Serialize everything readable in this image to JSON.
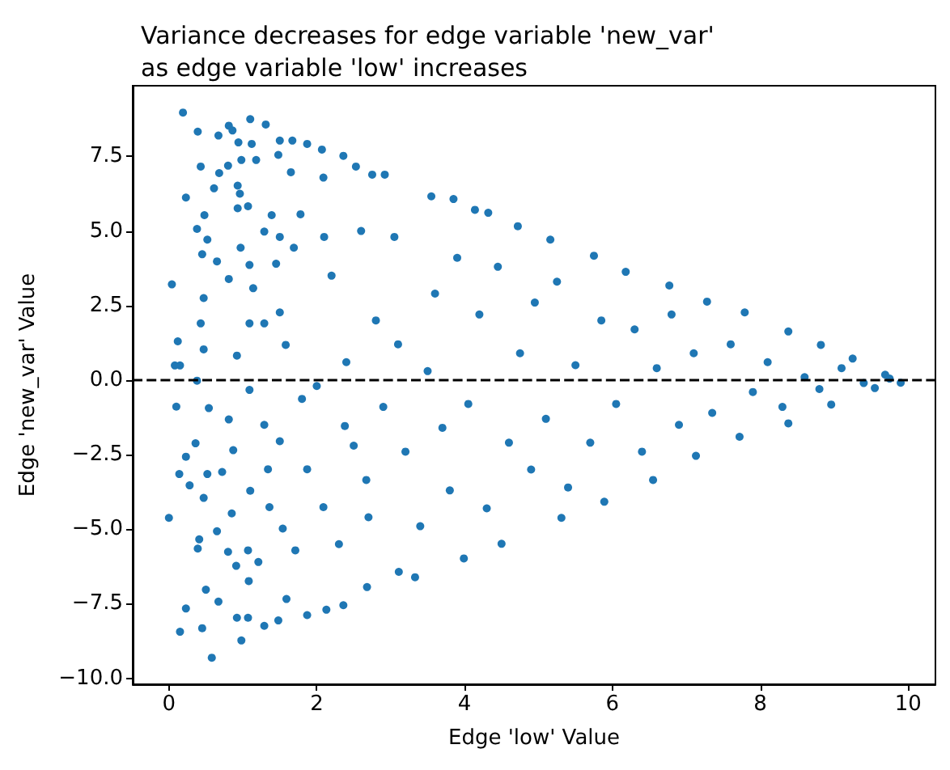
{
  "chart_data": {
    "type": "scatter",
    "title": "Variance decreases for edge variable 'new_var'\nas edge variable 'low' increases",
    "xlabel": "Edge 'low' Value",
    "ylabel": "Edge 'new_var' Value",
    "x": [
      0.19,
      0.23,
      0.04,
      0.12,
      0.08,
      0.15,
      0.39,
      0.43,
      0.48,
      0.38,
      0.52,
      0.45,
      0.65,
      0.43,
      0.47,
      0.47,
      0.38,
      0.67,
      0.61,
      0.68,
      0.81,
      0.86,
      0.94,
      0.8,
      0.98,
      0.93,
      0.96,
      0.93,
      1.1,
      1.31,
      1.12,
      1.18,
      1.07,
      0.97,
      0.81,
      1.09,
      1.14,
      1.09,
      0.92,
      1.29,
      1.5,
      1.48,
      1.67,
      1.87,
      2.07,
      1.65,
      1.39,
      1.29,
      1.5,
      1.45,
      1.69,
      1.78,
      1.5,
      1.58,
      2.09,
      2.36,
      2.53,
      2.75,
      2.92,
      0.0,
      0.1,
      0.14,
      0.23,
      0.28,
      0.36,
      0.15,
      0.23,
      0.41,
      0.39,
      0.45,
      0.5,
      0.58,
      0.54,
      0.52,
      0.47,
      0.65,
      0.67,
      0.8,
      0.72,
      0.81,
      0.87,
      0.85,
      0.91,
      0.92,
      0.98,
      1.07,
      1.07,
      1.09,
      1.1,
      1.21,
      1.08,
      1.29,
      1.29,
      1.34,
      1.5,
      1.36,
      1.54,
      1.48,
      1.59,
      1.87,
      1.71,
      1.87,
      1.8,
      2.13,
      2.36,
      2.68,
      3.11,
      3.33,
      2.09,
      2.38,
      2.67,
      2.2,
      2.4,
      2.5,
      2.6,
      2.8,
      2.9,
      2.3,
      2.7,
      2.1,
      2.0,
      3.55,
      3.85,
      4.14,
      4.32,
      4.72,
      5.16,
      5.75,
      6.18,
      6.77,
      7.28,
      7.79,
      8.38,
      8.82,
      9.25,
      9.69,
      9.9,
      3.99,
      4.5,
      5.31,
      5.89,
      6.55,
      7.13,
      7.72,
      8.38,
      8.96,
      9.55,
      3.05,
      3.1,
      3.2,
      3.4,
      3.5,
      3.6,
      3.7,
      3.9,
      3.8,
      4.05,
      4.2,
      4.3,
      4.45,
      4.6,
      4.75,
      4.9,
      4.95,
      5.1,
      5.25,
      5.4,
      5.5,
      5.7,
      5.85,
      6.05,
      6.3,
      6.4,
      6.6,
      6.8,
      6.9,
      7.1,
      7.35,
      7.6,
      7.9,
      8.1,
      8.3,
      8.6,
      8.8,
      9.1,
      9.4,
      9.75
    ],
    "values": [
      8.97,
      6.12,
      3.21,
      1.3,
      0.49,
      0.49,
      8.33,
      7.16,
      5.53,
      5.07,
      4.71,
      4.22,
      3.98,
      1.9,
      2.75,
      1.03,
      -0.02,
      8.2,
      6.43,
      6.94,
      8.53,
      8.37,
      7.97,
      7.19,
      7.38,
      6.52,
      6.25,
      5.76,
      8.75,
      8.57,
      7.92,
      7.38,
      5.83,
      4.44,
      3.39,
      3.86,
      3.08,
      1.9,
      0.82,
      1.9,
      8.03,
      7.55,
      8.03,
      7.92,
      7.73,
      6.97,
      5.53,
      4.98,
      4.8,
      3.9,
      4.44,
      5.56,
      2.27,
      1.18,
      6.79,
      7.52,
      7.16,
      6.89,
      6.89,
      -4.62,
      -0.89,
      -3.15,
      -2.57,
      -3.53,
      -2.12,
      -8.44,
      -7.66,
      -5.34,
      -5.65,
      -8.32,
      -7.03,
      -9.31,
      -0.94,
      -3.15,
      -3.95,
      -5.07,
      -7.43,
      -5.76,
      -3.08,
      -1.32,
      -2.35,
      -4.47,
      -6.23,
      -7.97,
      -8.73,
      -7.97,
      -5.71,
      -0.33,
      -3.71,
      -6.1,
      -6.74,
      -8.24,
      -1.5,
      -2.99,
      -2.05,
      -4.26,
      -4.98,
      -8.06,
      -7.34,
      -7.88,
      -5.71,
      -2.99,
      -0.63,
      -7.7,
      -7.55,
      -6.94,
      -6.43,
      -6.61,
      -4.26,
      -1.54,
      -3.35,
      3.5,
      0.6,
      -2.2,
      5.0,
      2.0,
      -0.9,
      -5.5,
      -4.6,
      4.8,
      -0.2,
      6.16,
      6.07,
      5.71,
      5.61,
      5.16,
      4.71,
      4.17,
      3.63,
      3.17,
      2.63,
      2.27,
      1.63,
      1.18,
      0.72,
      0.18,
      -0.09,
      -5.98,
      -5.49,
      -4.62,
      -4.08,
      -3.35,
      -2.54,
      -1.9,
      -1.45,
      -0.82,
      -0.27,
      4.8,
      1.2,
      -2.4,
      -4.9,
      0.3,
      2.9,
      -1.6,
      4.1,
      -3.7,
      -0.8,
      2.2,
      -4.3,
      3.8,
      -2.1,
      0.9,
      -3.0,
      2.6,
      -1.3,
      3.3,
      -3.6,
      0.5,
      -2.1,
      2.0,
      -0.8,
      1.7,
      -2.4,
      0.4,
      2.2,
      -1.5,
      0.9,
      -1.1,
      1.2,
      -0.4,
      0.6,
      -0.9,
      0.1,
      -0.3,
      0.4,
      -0.1,
      0.05
    ],
    "color": "#1f77b4",
    "marker": "circle",
    "grid": false,
    "xlim": [
      -0.49,
      10.37
    ],
    "xticks": [
      0,
      2,
      4,
      6,
      8,
      10
    ],
    "ylim": [
      -10.2,
      9.87
    ],
    "yticks": [
      {
        "value": -10,
        "label": "−10.0"
      },
      {
        "value": -7.5,
        "label": "−7.5"
      },
      {
        "value": -5,
        "label": "−5.0"
      },
      {
        "value": -2.5,
        "label": "−2.5"
      },
      {
        "value": 0,
        "label": "0.0"
      },
      {
        "value": 2.5,
        "label": "2.5"
      },
      {
        "value": 5,
        "label": "5.0"
      },
      {
        "value": 7.5,
        "label": "7.5"
      }
    ],
    "ref_lines": [
      {
        "axis": "y",
        "value": 0,
        "color": "#000000",
        "line_style": "dashed"
      }
    ]
  }
}
